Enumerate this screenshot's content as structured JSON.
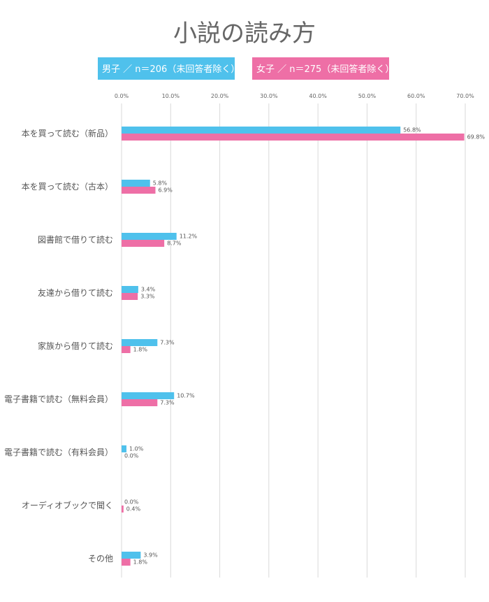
{
  "chart_data": {
    "type": "bar",
    "orientation": "horizontal",
    "title": "小説の読み方",
    "legend_position": "top",
    "grid": true,
    "xlim": [
      0,
      70
    ],
    "ticks": [
      "0.0%",
      "10.0%",
      "20.0%",
      "30.0%",
      "40.0%",
      "50.0%",
      "60.0%",
      "70.0%"
    ],
    "categories": [
      "本を買って読む（新品）",
      "本を買って読む（古本）",
      "図書館で借りて読む",
      "友達から借りて読む",
      "家族から借りて読む",
      "電子書籍で読む（無料会員）",
      "電子書籍で読む（有料会員）",
      "オーディオブックで聞く",
      "その他"
    ],
    "series": [
      {
        "name": "男子 ／ n＝206（未回答者除く）",
        "color": "#4FC1EC",
        "values": [
          56.8,
          5.8,
          11.2,
          3.4,
          7.3,
          10.7,
          1.0,
          0.0,
          3.9
        ],
        "labels": [
          "56.8%",
          "5.8%",
          "11.2%",
          "3.4%",
          "7.3%",
          "10.7%",
          "1.0%",
          "0.0%",
          "3.9%"
        ]
      },
      {
        "name": "女子 ／ n＝275（未回答者除く）",
        "color": "#EE6FA6",
        "values": [
          69.8,
          6.9,
          8.7,
          3.3,
          1.8,
          7.3,
          0.0,
          0.4,
          1.8
        ],
        "labels": [
          "69.8%",
          "6.9%",
          "8.7%",
          "3.3%",
          "1.8%",
          "7.3%",
          "0.0%",
          "0.4%",
          "1.8%"
        ]
      }
    ]
  }
}
